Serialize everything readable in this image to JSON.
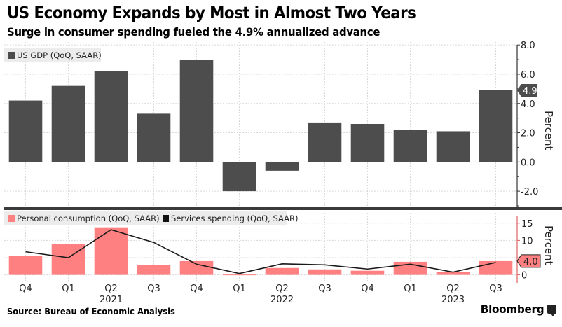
{
  "header": {
    "title": "US Economy Expands by Most in Almost Two Years",
    "subtitle": "Surge in consumer spending fueled the 4.9% annualized advance"
  },
  "footer": {
    "source": "Source: Bureau of Economic Analysis",
    "brand": "Bloomberg"
  },
  "colors": {
    "gdp_bar": "#4d4d4d",
    "consumption_bar": "#ff8080",
    "services_line": "#1a1a1a",
    "grid": "#d9d9d9",
    "axis": "#333333"
  },
  "chart_data": [
    {
      "type": "bar",
      "title": "US Economy Expands by Most in Almost Two Years",
      "subtitle": "Surge in consumer spending fueled the 4.9% annualized advance",
      "categories": [
        "Q4",
        "Q1",
        "Q2",
        "Q3",
        "Q4",
        "Q1",
        "Q2",
        "Q3",
        "Q4",
        "Q1",
        "Q2",
        "Q3"
      ],
      "year_labels": [
        {
          "label": "2021",
          "at_index": 2
        },
        {
          "label": "2022",
          "at_index": 6
        },
        {
          "label": "2023",
          "at_index": 10
        }
      ],
      "series": [
        {
          "name": "US GDP (QoQ, SAAR)",
          "values": [
            4.2,
            5.2,
            6.2,
            3.3,
            7.0,
            -2.0,
            -0.6,
            2.7,
            2.6,
            2.2,
            2.1,
            4.9
          ]
        }
      ],
      "ylabel": "Percent",
      "ylim": [
        -3.0,
        8.2
      ],
      "yticks": [
        -2.0,
        0.0,
        2.0,
        4.0,
        6.0,
        8.0
      ],
      "ytick_labels": [
        "-2.0",
        "0.0",
        "2.0",
        "4.0",
        "6.0",
        "8.0"
      ],
      "last_value_label": "4.9",
      "legend": "top-left",
      "grid": true,
      "y_axis_side": "right"
    },
    {
      "type": "bar+line",
      "categories": [
        "Q4",
        "Q1",
        "Q2",
        "Q3",
        "Q4",
        "Q1",
        "Q2",
        "Q3",
        "Q4",
        "Q1",
        "Q2",
        "Q3"
      ],
      "series": [
        {
          "name": "Personal consumption (QoQ, SAAR)",
          "type": "bar",
          "values": [
            5.6,
            8.9,
            13.8,
            2.8,
            4.0,
            0.1,
            2.0,
            1.6,
            1.2,
            3.8,
            0.8,
            4.0
          ]
        },
        {
          "name": "Services spending (QoQ, SAAR)",
          "type": "line",
          "values": [
            6.7,
            5.0,
            13.1,
            9.4,
            3.1,
            0.4,
            3.2,
            2.9,
            1.7,
            3.1,
            0.8,
            3.6
          ]
        }
      ],
      "ylabel": "Percent",
      "ylim": [
        -1.5,
        18
      ],
      "yticks": [
        0,
        5,
        10,
        15
      ],
      "ytick_labels": [
        "0",
        "",
        "10",
        "15"
      ],
      "last_value_label": "4.0",
      "legend": "top-left",
      "grid": true,
      "y_axis_side": "right"
    }
  ]
}
